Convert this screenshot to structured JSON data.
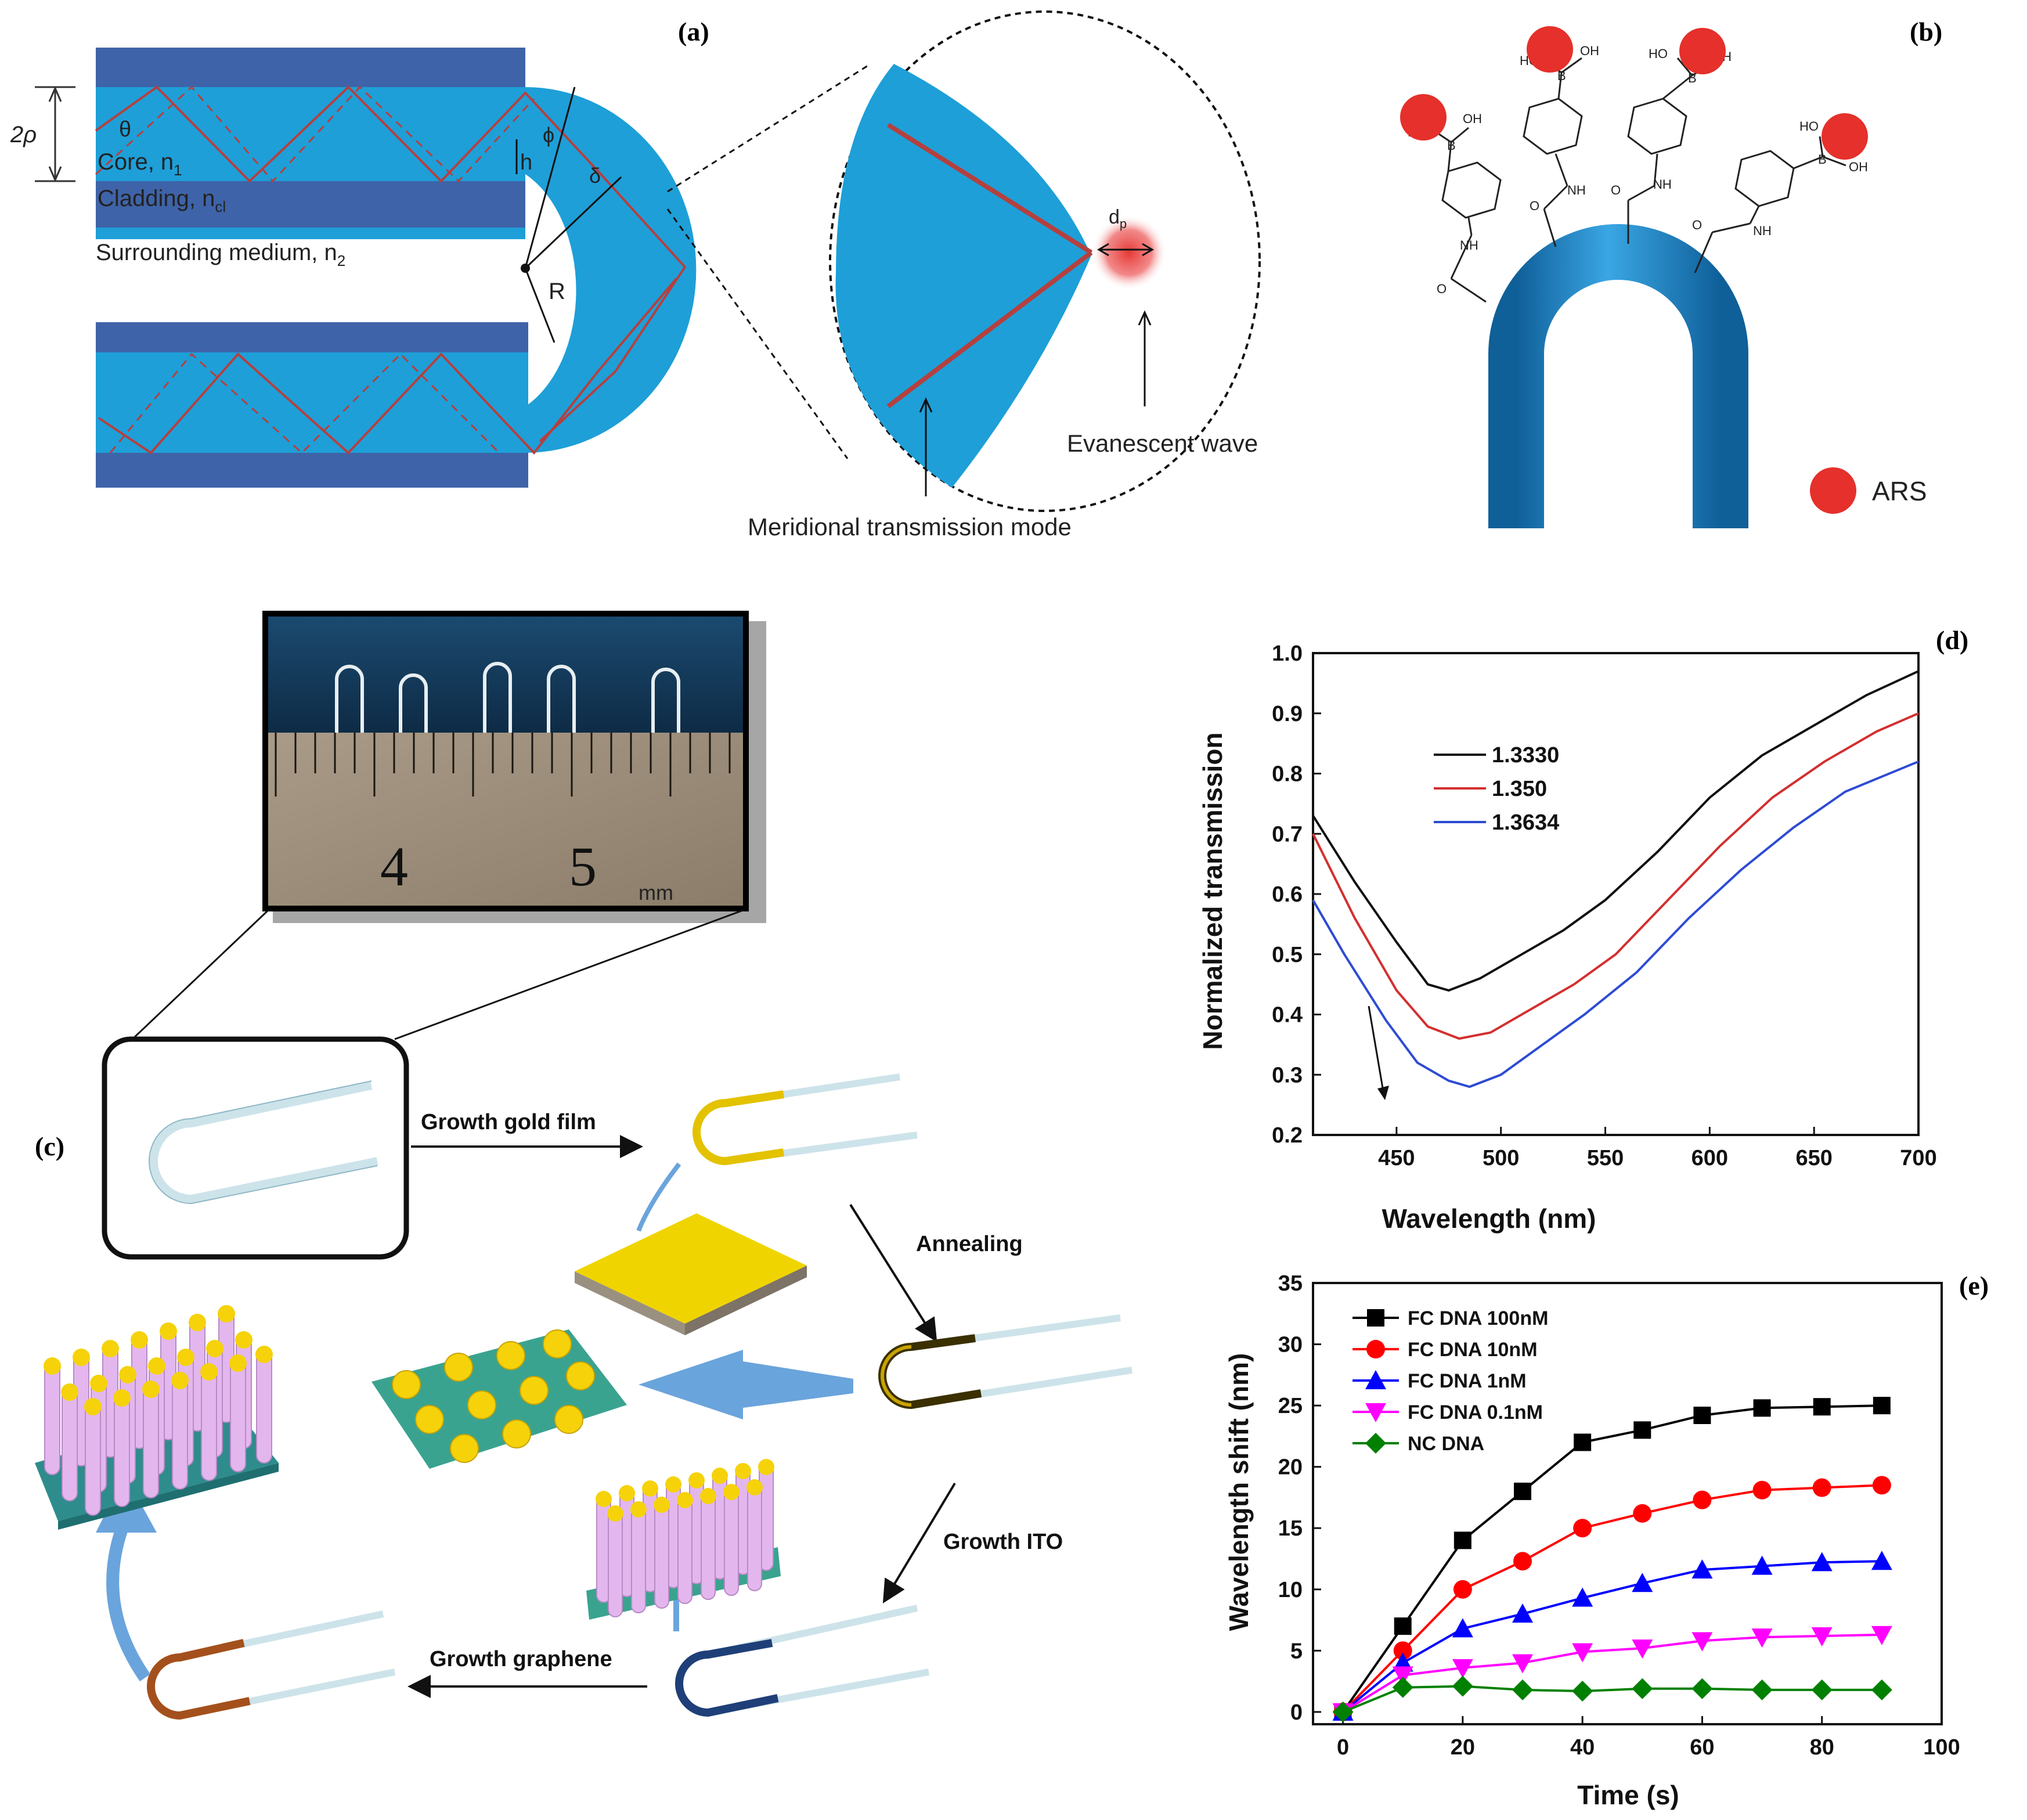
{
  "panel_labels": {
    "a": "(a)",
    "b": "(b)",
    "c": "(c)",
    "d": "(d)",
    "e": "(e)"
  },
  "panel_a": {
    "two_rho": "2ρ",
    "theta": "θ",
    "core": "Core, n",
    "core_sub": "1",
    "cladding": "Cladding, n",
    "cladding_sub": "cl",
    "surrounding": "Surrounding medium, n",
    "surrounding_sub": "2",
    "h": "h",
    "phi": "ϕ",
    "delta": "δ",
    "R": "R",
    "dp": "d",
    "dp_sub": "p",
    "evanescent": "Evanescent wave",
    "meridional": "Meridional transmission mode",
    "colors": {
      "core": "#1e9fd8",
      "cladding": "#3f63a8",
      "ray": "#b5403e",
      "evanescent": "#e53935"
    }
  },
  "panel_b": {
    "legend": "ARS",
    "group_labels": {
      "nh": "NH",
      "ho": "HO",
      "oh": "OH",
      "b": "B",
      "o": "O"
    },
    "colors": {
      "tube": "#1d86c6",
      "ars": "#e5302b"
    }
  },
  "panel_c": {
    "ruler_numbers": [
      "4",
      "5"
    ],
    "ruler_unit": "mm",
    "steps": {
      "growth_gold": "Growth gold film",
      "annealing": "Annealing",
      "growth_ito": "Growth ITO",
      "growth_graphene": "Growth graphene"
    },
    "colors": {
      "gold": "#f0d400",
      "nanorod": "#e3b7ee",
      "substrate": "#3aa38f",
      "arrow": "#6aa4dc",
      "coated": "#1f3f78",
      "graphene": "#a4501c"
    }
  },
  "chart_data": [
    {
      "panel": "d",
      "type": "line",
      "xlabel": "Wavelength (nm)",
      "ylabel": "Normalized transmission",
      "xlim": [
        410,
        700
      ],
      "ylim": [
        0.2,
        1.0
      ],
      "xticks": [
        450,
        500,
        550,
        600,
        650,
        700
      ],
      "yticks": [
        0.2,
        0.3,
        0.4,
        0.5,
        0.6,
        0.7,
        0.8,
        0.9,
        1.0
      ],
      "series": [
        {
          "name": "1.3330",
          "color": "#111111",
          "x": [
            410,
            430,
            450,
            465,
            475,
            490,
            510,
            530,
            550,
            575,
            600,
            625,
            650,
            675,
            700
          ],
          "y": [
            0.73,
            0.62,
            0.52,
            0.45,
            0.44,
            0.46,
            0.5,
            0.54,
            0.59,
            0.67,
            0.76,
            0.83,
            0.88,
            0.93,
            0.97
          ]
        },
        {
          "name": "1.350",
          "color": "#d32f2f",
          "x": [
            410,
            430,
            450,
            465,
            480,
            495,
            515,
            535,
            555,
            580,
            605,
            630,
            655,
            680,
            700
          ],
          "y": [
            0.7,
            0.56,
            0.44,
            0.38,
            0.36,
            0.37,
            0.41,
            0.45,
            0.5,
            0.59,
            0.68,
            0.76,
            0.82,
            0.87,
            0.9
          ]
        },
        {
          "name": "1.3634",
          "color": "#2e4bd3",
          "x": [
            410,
            425,
            445,
            460,
            475,
            485,
            500,
            520,
            540,
            565,
            590,
            615,
            640,
            665,
            700
          ],
          "y": [
            0.59,
            0.5,
            0.39,
            0.32,
            0.29,
            0.28,
            0.3,
            0.35,
            0.4,
            0.47,
            0.56,
            0.64,
            0.71,
            0.77,
            0.82
          ]
        }
      ]
    },
    {
      "panel": "e",
      "type": "line",
      "xlabel": "Time (s)",
      "ylabel": "Wavelength shift (nm)",
      "xlim": [
        -5,
        100
      ],
      "ylim": [
        -1,
        35
      ],
      "xticks": [
        0,
        20,
        40,
        60,
        80,
        100
      ],
      "yticks": [
        0,
        5,
        10,
        15,
        20,
        25,
        30,
        35
      ],
      "x": [
        0,
        10,
        20,
        30,
        40,
        50,
        60,
        70,
        80,
        90
      ],
      "series": [
        {
          "name": "FC DNA 100nM",
          "color": "#000000",
          "marker": "square",
          "values": [
            0,
            7,
            14,
            18,
            22,
            23,
            24.2,
            24.8,
            24.9,
            25
          ]
        },
        {
          "name": "FC DNA 10nM",
          "color": "#ff0000",
          "marker": "circle",
          "values": [
            0,
            5,
            10,
            12.3,
            15,
            16.2,
            17.3,
            18.1,
            18.3,
            18.5
          ]
        },
        {
          "name": "FC DNA 1nM",
          "color": "#0000ff",
          "marker": "triangle-up",
          "values": [
            0,
            4,
            6.8,
            8,
            9.3,
            10.5,
            11.6,
            11.9,
            12.2,
            12.3
          ]
        },
        {
          "name": "FC DNA 0.1nM",
          "color": "#ff00ff",
          "marker": "triangle-down",
          "values": [
            0,
            3,
            3.6,
            4,
            4.9,
            5.2,
            5.8,
            6.1,
            6.2,
            6.3
          ]
        },
        {
          "name": "NC DNA",
          "color": "#008000",
          "marker": "diamond",
          "values": [
            0,
            2,
            2.1,
            1.8,
            1.7,
            1.9,
            1.9,
            1.8,
            1.8,
            1.8
          ]
        }
      ]
    }
  ]
}
